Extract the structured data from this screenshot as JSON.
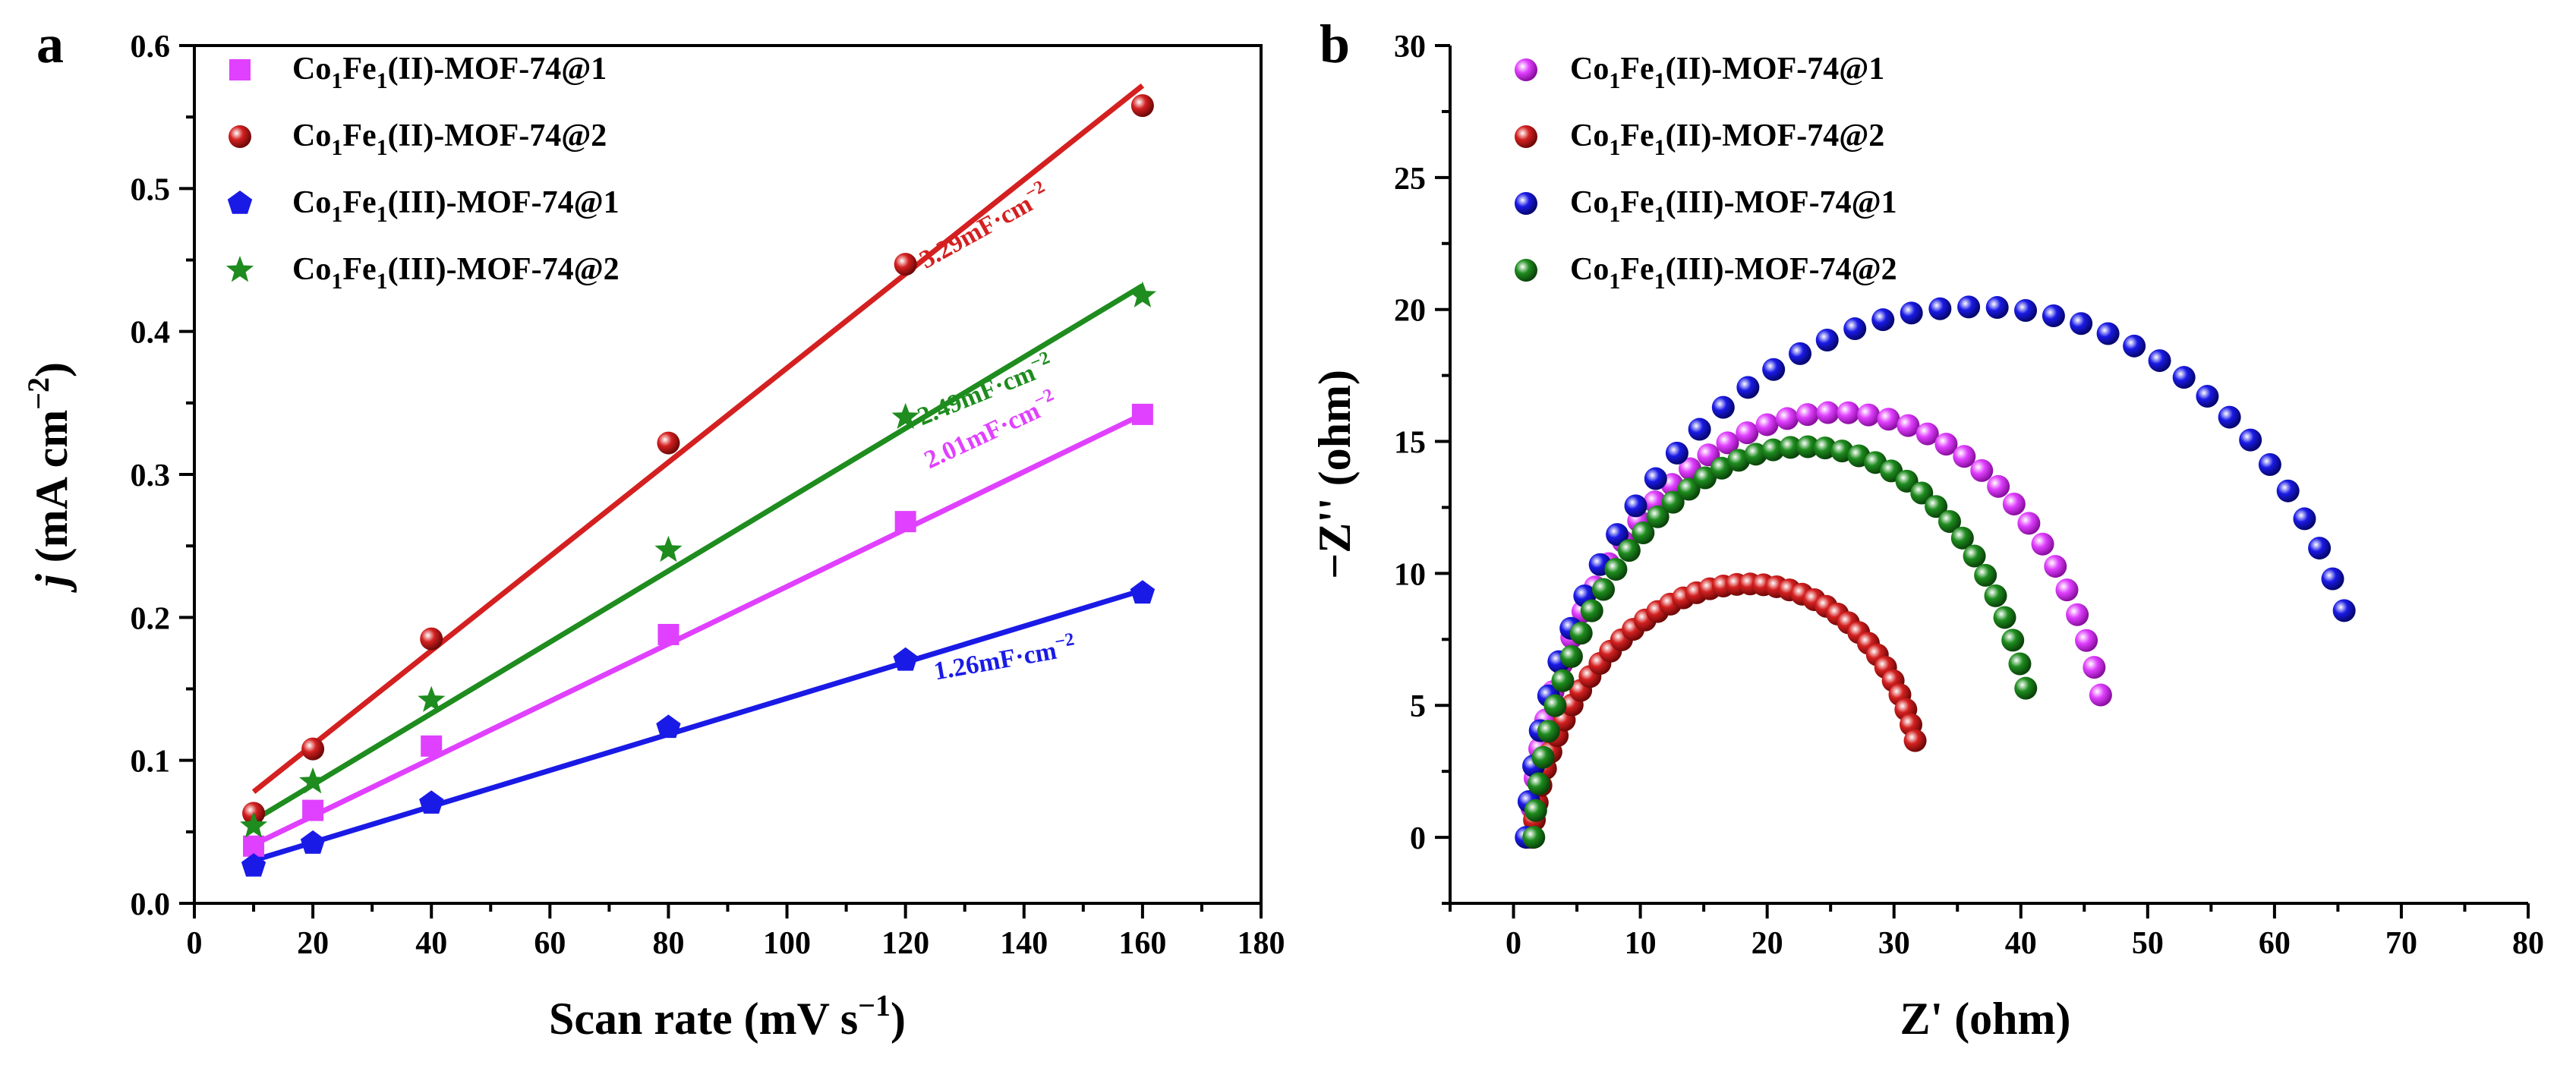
{
  "panel_a_label": "a",
  "panel_b_label": "b",
  "colors": {
    "magenta": "#e040ff",
    "red": "#d42020",
    "blue": "#1a1ae6",
    "green": "#1e8c1e"
  },
  "chart_data": [
    {
      "type": "scatter",
      "panel": "a",
      "xlabel_main": "Scan rate (mV s",
      "xlabel_sup": "−1",
      "xlabel_end": ")",
      "ylabel_italic": "j",
      "ylabel_main": " (mA cm",
      "ylabel_sup": "−2",
      "ylabel_end": ")",
      "xlim": [
        0,
        180
      ],
      "ylim": [
        0,
        0.6
      ],
      "xticks": [
        0,
        20,
        40,
        60,
        80,
        100,
        120,
        140,
        160,
        180
      ],
      "xtick_labels": [
        "0",
        "20",
        "40",
        "60",
        "80",
        "100",
        "120",
        "140",
        "160",
        "180"
      ],
      "yticks": [
        0,
        0.1,
        0.2,
        0.3,
        0.4,
        0.5,
        0.6
      ],
      "ytick_labels": [
        "0.0",
        "0.1",
        "0.2",
        "0.3",
        "0.4",
        "0.5",
        "0.6"
      ],
      "legend_position": "top-left",
      "series": [
        {
          "name_prefix": "Co",
          "sub1": "1",
          "name_mid": "Fe",
          "sub2": "1",
          "name_suffix": "(II)-MOF-74@1",
          "color": "#e040ff",
          "marker": "square",
          "x": [
            10,
            20,
            40,
            80,
            120,
            160
          ],
          "y": [
            0.04,
            0.065,
            0.11,
            0.188,
            0.267,
            0.342
          ],
          "fit": [
            [
              10,
              0.041
            ],
            [
              160,
              0.342
            ]
          ],
          "annotation": "2.01mF·cm",
          "annotation_sup": "−2"
        },
        {
          "name_prefix": "Co",
          "sub1": "1",
          "name_mid": "Fe",
          "sub2": "1",
          "name_suffix": "(II)-MOF-74@2",
          "color": "#d42020",
          "marker": "circle",
          "x": [
            10,
            20,
            40,
            80,
            120,
            160
          ],
          "y": [
            0.063,
            0.108,
            0.185,
            0.322,
            0.447,
            0.558
          ],
          "fit": [
            [
              10,
              0.078
            ],
            [
              160,
              0.572
            ]
          ],
          "annotation": "3.29mF·cm",
          "annotation_sup": "−2"
        },
        {
          "name_prefix": "Co",
          "sub1": "1",
          "name_mid": "Fe",
          "sub2": "1",
          "name_suffix": "(III)-MOF-74@1",
          "color": "#1a1ae6",
          "marker": "pentagon",
          "x": [
            10,
            20,
            40,
            80,
            120,
            160
          ],
          "y": [
            0.026,
            0.042,
            0.07,
            0.123,
            0.17,
            0.217
          ],
          "fit": [
            [
              10,
              0.03
            ],
            [
              160,
              0.219
            ]
          ],
          "annotation": "1.26mF·cm",
          "annotation_sup": "−2"
        },
        {
          "name_prefix": "Co",
          "sub1": "1",
          "name_mid": "Fe",
          "sub2": "1",
          "name_suffix": "(III)-MOF-74@2",
          "color": "#1e8c1e",
          "marker": "star",
          "x": [
            10,
            20,
            40,
            80,
            120,
            160
          ],
          "y": [
            0.054,
            0.085,
            0.142,
            0.247,
            0.34,
            0.425
          ],
          "fit": [
            [
              10,
              0.058
            ],
            [
              160,
              0.432
            ]
          ],
          "annotation": "2.49mF·cm",
          "annotation_sup": "−2"
        }
      ]
    },
    {
      "type": "scatter",
      "panel": "b",
      "xlabel_main": "Z' (ohm)",
      "ylabel_main": "−Z'' (ohm)",
      "xlim": [
        -5,
        80
      ],
      "ylim": [
        -2.5,
        30
      ],
      "xticks": [
        0,
        10,
        20,
        30,
        40,
        50,
        60,
        70,
        80
      ],
      "xtick_labels": [
        "0",
        "10",
        "20",
        "30",
        "40",
        "50",
        "60",
        "70",
        "80"
      ],
      "yticks": [
        0,
        5,
        10,
        15,
        20,
        25,
        30
      ],
      "ytick_labels": [
        "0",
        "5",
        "10",
        "15",
        "20",
        "25",
        "30"
      ],
      "legend_position": "top-left",
      "series": [
        {
          "name_prefix": "Co",
          "sub1": "1",
          "name_mid": "Fe",
          "sub2": "1",
          "name_suffix": "(II)-MOF-74@1",
          "color": "#e040ff",
          "marker": "sphere",
          "arc": {
            "x_start": 1.3,
            "x_end": 47.2,
            "y_peak": 16.1,
            "x_peak": 25.5,
            "n": 40,
            "theta_end": 2.8
          }
        },
        {
          "name_prefix": "Co",
          "sub1": "1",
          "name_mid": "Fe",
          "sub2": "1",
          "name_suffix": "(II)-MOF-74@2",
          "color": "#d42020",
          "marker": "sphere",
          "arc": {
            "x_start": 1.5,
            "x_end": 32.2,
            "y_peak": 9.6,
            "x_peak": 18.5,
            "n": 40,
            "theta_end": 2.75
          }
        },
        {
          "name_prefix": "Co",
          "sub1": "1",
          "name_mid": "Fe",
          "sub2": "1",
          "name_suffix": "(III)-MOF-74@1",
          "color": "#1a1ae6",
          "marker": "sphere",
          "arc": {
            "x_start": 1.0,
            "x_end": 67.8,
            "y_peak": 20.1,
            "x_peak": 36.5,
            "n": 40,
            "theta_end": 2.7
          }
        },
        {
          "name_prefix": "Co",
          "sub1": "1",
          "name_mid": "Fe",
          "sub2": "1",
          "name_suffix": "(III)-MOF-74@2",
          "color": "#1e8c1e",
          "marker": "sphere",
          "arc": {
            "x_start": 1.6,
            "x_end": 41.3,
            "y_peak": 14.8,
            "x_peak": 23.0,
            "n": 40,
            "theta_end": 2.75
          }
        }
      ]
    }
  ]
}
